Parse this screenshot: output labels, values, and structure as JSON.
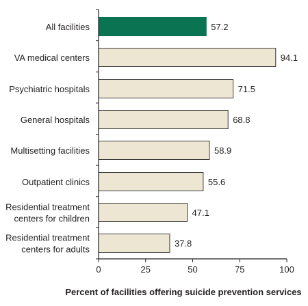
{
  "chart_data": {
    "type": "bar",
    "orientation": "horizontal",
    "title": "",
    "xlabel": "Percent of facilities offering suicide prevention services",
    "ylabel": "",
    "xlim": [
      0,
      100
    ],
    "xticks": [
      "0",
      "25",
      "50",
      "75",
      "100"
    ],
    "grid": false,
    "categories": [
      [
        "All facilities"
      ],
      [
        "VA medical centers"
      ],
      [
        "Psychiatric hospitals"
      ],
      [
        "General hospitals"
      ],
      [
        "Multisetting facilities"
      ],
      [
        "Outpatient clinics"
      ],
      [
        "Residential treatment",
        "centers for children"
      ],
      [
        "Residential treatment",
        "centers for adults"
      ]
    ],
    "values": [
      57.2,
      94.1,
      71.5,
      68.8,
      58.9,
      55.6,
      47.1,
      37.8
    ],
    "value_labels": [
      "57.2",
      "94.1",
      "71.5",
      "68.8",
      "58.9",
      "55.6",
      "47.1",
      "37.8"
    ],
    "colors": {
      "highlight": "#0a7352",
      "bar": "#ede6d3",
      "bar_edge": "#3a3a3a",
      "axis": "#231f20"
    },
    "highlight_index": 0
  }
}
